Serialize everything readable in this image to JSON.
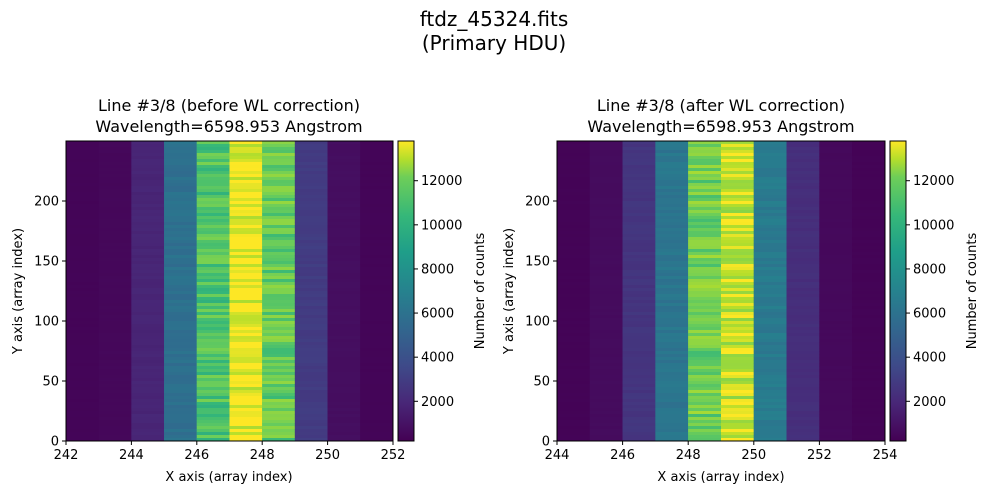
{
  "figure": {
    "title_line1": "ftdz_45324.fits",
    "title_line2": "(Primary HDU)"
  },
  "chart_data": [
    {
      "type": "heatmap",
      "title_line1": "Line #3/8 (before WL correction)",
      "title_line2": "Wavelength=6598.953 Angstrom",
      "xlabel": "X axis (array index)",
      "ylabel": "Y axis (array index)",
      "xlim": [
        242,
        252
      ],
      "ylim": [
        0,
        250
      ],
      "xticks": [
        242,
        244,
        246,
        248,
        250,
        252
      ],
      "yticks": [
        0,
        50,
        100,
        150,
        200
      ],
      "columns_x": [
        242.5,
        243.5,
        244.5,
        245.5,
        246.5,
        247.5,
        248.5,
        249.5,
        250.5,
        251.5
      ],
      "column_counts": [
        350,
        450,
        1600,
        5200,
        10000,
        13500,
        10500,
        2600,
        700,
        350
      ],
      "colorbar": {
        "label": "Number of counts",
        "range": [
          200,
          13800
        ],
        "ticks": [
          2000,
          4000,
          6000,
          8000,
          10000,
          12000
        ],
        "colormap": "viridis"
      }
    },
    {
      "type": "heatmap",
      "title_line1": "Line #3/8 (after WL correction)",
      "title_line2": "Wavelength=6598.953 Angstrom",
      "xlabel": "X axis (array index)",
      "ylabel": "Y axis (array index)",
      "xlim": [
        244,
        254
      ],
      "ylim": [
        0,
        250
      ],
      "xticks": [
        244,
        246,
        248,
        250,
        252,
        254
      ],
      "yticks": [
        0,
        50,
        100,
        150,
        200
      ],
      "columns_x": [
        244.5,
        245.5,
        246.5,
        247.5,
        248.5,
        249.5,
        250.5,
        251.5,
        252.5,
        253.5
      ],
      "column_counts": [
        300,
        600,
        2300,
        5500,
        10800,
        12700,
        5800,
        2000,
        500,
        300
      ],
      "colorbar": {
        "label": "Number of counts",
        "range": [
          200,
          13800
        ],
        "ticks": [
          2000,
          4000,
          6000,
          8000,
          10000,
          12000
        ],
        "colormap": "viridis"
      }
    }
  ]
}
